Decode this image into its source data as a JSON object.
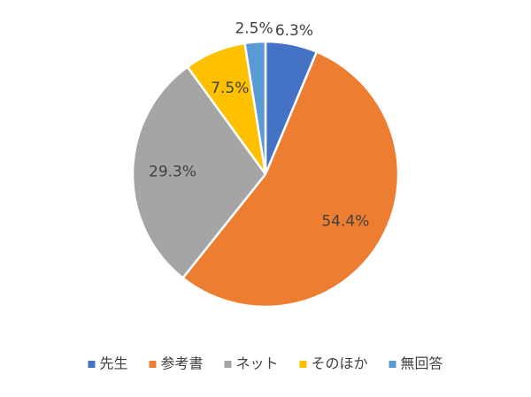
{
  "chart_data": {
    "type": "pie",
    "categories": [
      "先生",
      "参考書",
      "ネット",
      "そのほか",
      "無回答"
    ],
    "values": [
      6.3,
      54.4,
      29.3,
      7.5,
      2.5
    ],
    "value_labels": [
      "6.3%",
      "54.4%",
      "29.3%",
      "7.5%",
      "2.5%"
    ],
    "colors": [
      "#4472c4",
      "#ed7d31",
      "#a5a5a5",
      "#ffc000",
      "#5b9bd5"
    ],
    "legend": "bottom"
  }
}
